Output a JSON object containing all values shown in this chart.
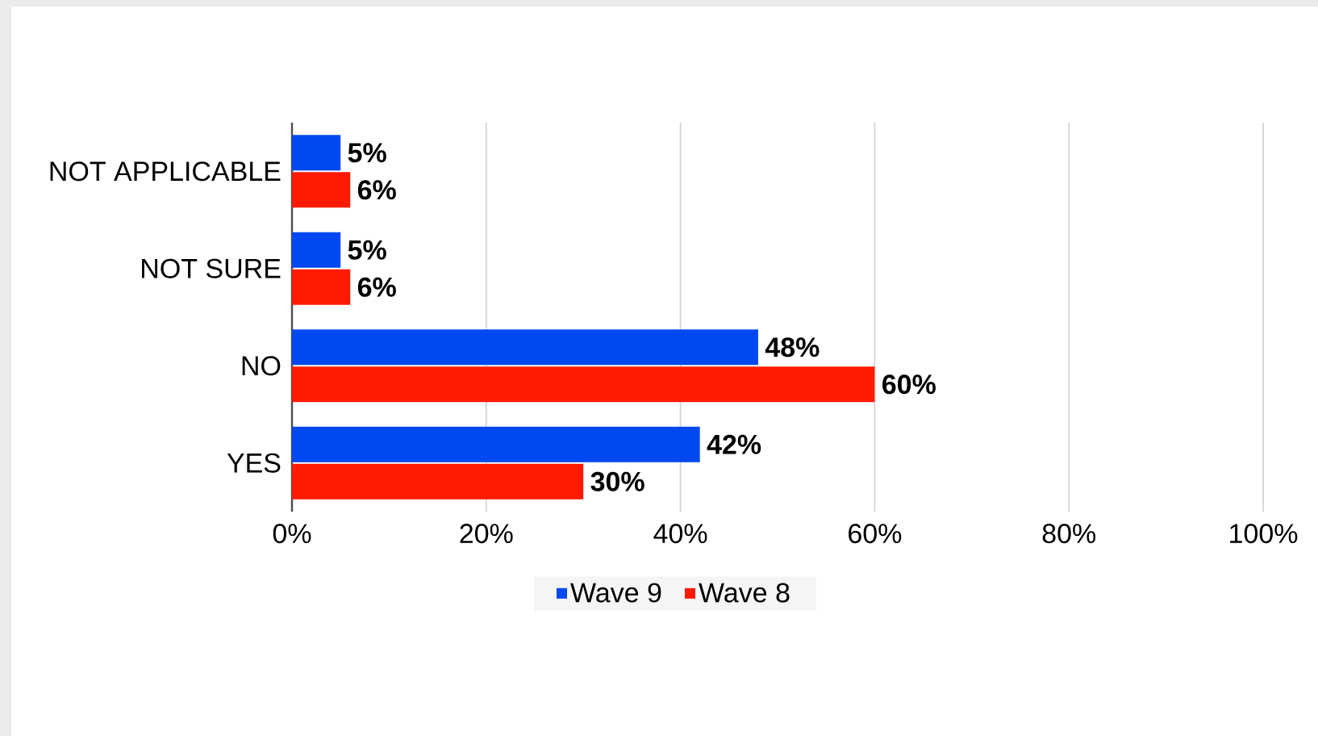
{
  "chart_data": {
    "type": "bar",
    "orientation": "horizontal",
    "categories": [
      "NOT APPLICABLE",
      "NOT SURE",
      "NO",
      "YES"
    ],
    "series": [
      {
        "name": "Wave 9",
        "color": "#0048f0",
        "values": [
          5,
          5,
          48,
          42
        ],
        "value_labels": [
          "5%",
          "5%",
          "48%",
          "42%"
        ]
      },
      {
        "name": "Wave 8",
        "color": "#ff1a00",
        "values": [
          6,
          6,
          60,
          30
        ],
        "value_labels": [
          "6%",
          "6%",
          "60%",
          "30%"
        ]
      }
    ],
    "xlim": [
      0,
      100
    ],
    "xticks": [
      {
        "value": 0,
        "label": "0%"
      },
      {
        "value": 20,
        "label": "20%"
      },
      {
        "value": 40,
        "label": "40%"
      },
      {
        "value": 60,
        "label": "60%"
      },
      {
        "value": 80,
        "label": "80%"
      },
      {
        "value": 100,
        "label": "100%"
      }
    ],
    "grid": "x",
    "legend": "bottom"
  }
}
